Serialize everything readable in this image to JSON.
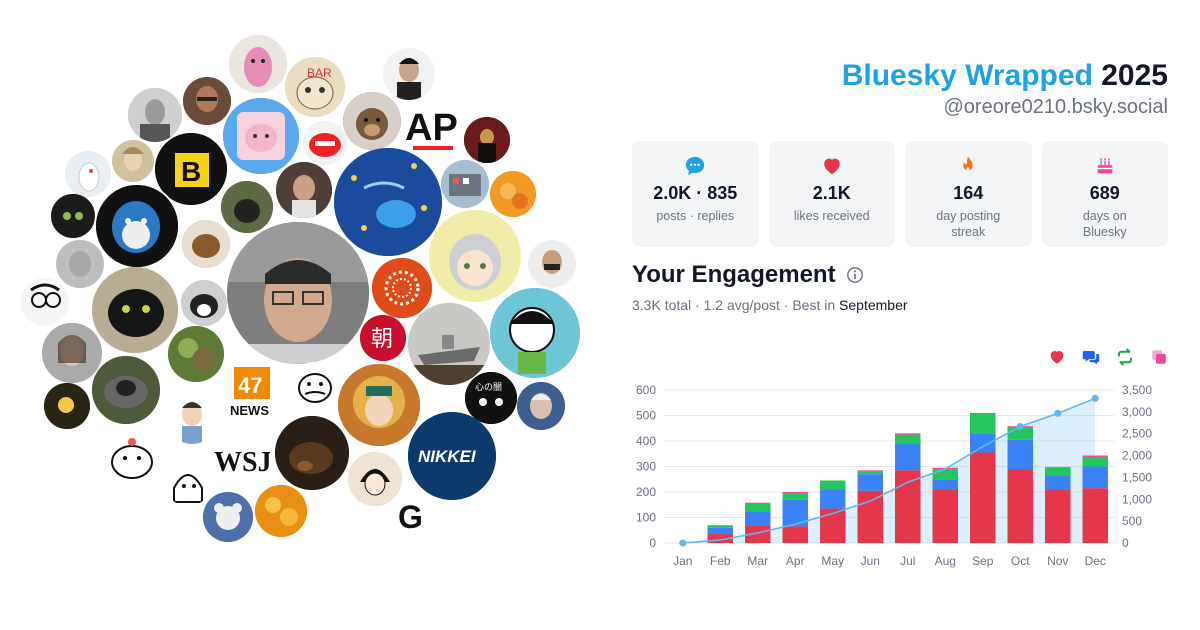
{
  "header": {
    "brand": "Bluesky Wrapped",
    "year": "2025",
    "handle": "@oreore0210.bsky.social"
  },
  "stats": [
    {
      "icon": "chat-bubble-icon",
      "value": "2.0K · 835",
      "label": "posts · replies",
      "color": "#1fa1e5"
    },
    {
      "icon": "heart-icon",
      "value": "2.1K",
      "label": "likes received",
      "color": "#e5364b"
    },
    {
      "icon": "flame-icon",
      "value": "164",
      "label": "day posting streak",
      "color": "#f97316"
    },
    {
      "icon": "cake-icon",
      "value": "689",
      "label": "days on Bluesky",
      "color": "#ec4899"
    }
  ],
  "engagement": {
    "title": "Your Engagement",
    "total": "3.3K total",
    "avg": "1.2 avg/post",
    "best_prefix": "Best in",
    "best_month": "September",
    "sep": " · "
  },
  "legend_icons": [
    {
      "name": "likes-legend-icon",
      "color": "#e5364b"
    },
    {
      "name": "replies-legend-icon",
      "color": "#2563eb"
    },
    {
      "name": "reposts-legend-icon",
      "color": "#16a34a"
    },
    {
      "name": "quotes-legend-icon",
      "color": "#ec4899"
    }
  ],
  "chart_data": {
    "type": "bar",
    "stacked": true,
    "categories": [
      "Jan",
      "Feb",
      "Mar",
      "Apr",
      "May",
      "Jun",
      "Jul",
      "Aug",
      "Sep",
      "Oct",
      "Nov",
      "Dec"
    ],
    "series": [
      {
        "color": "#e5364b",
        "values": [
          0,
          35,
          70,
          65,
          135,
          205,
          285,
          210,
          355,
          290,
          210,
          215
        ]
      },
      {
        "color": "#3b82f6",
        "values": [
          0,
          25,
          55,
          105,
          75,
          65,
          105,
          40,
          75,
          115,
          55,
          85
        ]
      },
      {
        "color": "#22c55e",
        "values": [
          0,
          8,
          30,
          25,
          35,
          12,
          35,
          40,
          80,
          50,
          30,
          35
        ]
      },
      {
        "color": "#ec4899",
        "values": [
          0,
          2,
          3,
          5,
          0,
          3,
          5,
          5,
          0,
          3,
          3,
          8
        ]
      }
    ],
    "cumulative": {
      "color": "#60b8f0",
      "values": [
        0,
        70,
        230,
        430,
        675,
        960,
        1390,
        1695,
        2205,
        2665,
        2965,
        3310
      ]
    },
    "ylim_left": [
      0,
      600
    ],
    "yticks_left": [
      0,
      100,
      200,
      300,
      400,
      500,
      600
    ],
    "ylim_right": [
      0,
      3500
    ],
    "yticks_right": [
      "0",
      "500",
      "1,000",
      "1,500",
      "2,000",
      "2,500",
      "3,000",
      "3,500"
    ],
    "yticks_right_values": [
      0,
      500,
      1000,
      1500,
      2000,
      2500,
      3000,
      3500
    ],
    "grid": true
  }
}
